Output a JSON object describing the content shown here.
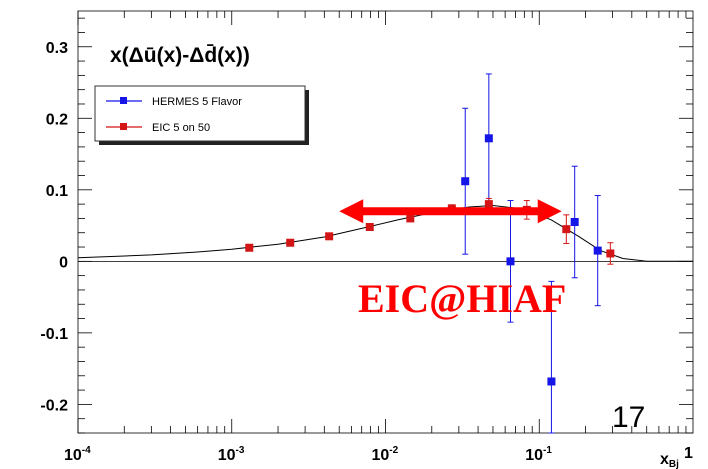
{
  "chart_data": {
    "type": "scatter",
    "title": "x(Δū(x)-Δd̄(x))",
    "xscale": "log",
    "xlim": [
      0.0001,
      1
    ],
    "ylim": [
      -0.24,
      0.35
    ],
    "x_tick_labels": [
      {
        "base": "10",
        "exp": "-4",
        "value": 0.0001
      },
      {
        "base": "10",
        "exp": "-3",
        "value": 0.001
      },
      {
        "base": "10",
        "exp": "-2",
        "value": 0.01
      },
      {
        "base": "10",
        "exp": "-1",
        "value": 0.1
      },
      {
        "base": "1",
        "exp": "",
        "value": 1
      }
    ],
    "y_tick_labels": [
      {
        "label": "0.3",
        "value": 0.3
      },
      {
        "label": "0.2",
        "value": 0.2
      },
      {
        "label": "0.1",
        "value": 0.1
      },
      {
        "label": "0",
        "value": 0
      },
      {
        "label": "-0.1",
        "value": -0.1
      },
      {
        "label": "-0.2",
        "value": -0.2
      }
    ],
    "xlabel": "x",
    "xlabel_sub": "Bj",
    "legend_position": "top-left",
    "series": [
      {
        "name": "HERMES 5 Flavor",
        "color": "#1515e8",
        "points": [
          {
            "x": 0.033,
            "y": 0.112,
            "err": 0.102
          },
          {
            "x": 0.047,
            "y": 0.172,
            "err": 0.09
          },
          {
            "x": 0.065,
            "y": 0.0,
            "err": 0.085
          },
          {
            "x": 0.12,
            "y": -0.168,
            "err": 0.14
          },
          {
            "x": 0.17,
            "y": 0.055,
            "err": 0.078
          },
          {
            "x": 0.24,
            "y": 0.015,
            "err": 0.077
          }
        ]
      },
      {
        "name": "EIC 5 on 50",
        "color": "#d41515",
        "points": [
          {
            "x": 0.0013,
            "y": 0.019,
            "err": 0.002
          },
          {
            "x": 0.0024,
            "y": 0.026,
            "err": 0.002
          },
          {
            "x": 0.0043,
            "y": 0.035,
            "err": 0.002
          },
          {
            "x": 0.0079,
            "y": 0.048,
            "err": 0.003
          },
          {
            "x": 0.0145,
            "y": 0.06,
            "err": 0.003
          },
          {
            "x": 0.027,
            "y": 0.074,
            "err": 0.005
          },
          {
            "x": 0.047,
            "y": 0.08,
            "err": 0.008
          },
          {
            "x": 0.083,
            "y": 0.072,
            "err": 0.013
          },
          {
            "x": 0.15,
            "y": 0.045,
            "err": 0.02
          },
          {
            "x": 0.29,
            "y": 0.011,
            "err": 0.015
          }
        ]
      }
    ],
    "curve": [
      [
        0.0001,
        0.005
      ],
      [
        0.0003,
        0.009
      ],
      [
        0.0006,
        0.013
      ],
      [
        0.001,
        0.017
      ],
      [
        0.002,
        0.024
      ],
      [
        0.004,
        0.034
      ],
      [
        0.007,
        0.046
      ],
      [
        0.012,
        0.058
      ],
      [
        0.02,
        0.068
      ],
      [
        0.035,
        0.076
      ],
      [
        0.05,
        0.078
      ],
      [
        0.08,
        0.073
      ],
      [
        0.12,
        0.058
      ],
      [
        0.18,
        0.035
      ],
      [
        0.25,
        0.015
      ],
      [
        0.35,
        0.004
      ],
      [
        0.5,
        0.0
      ],
      [
        0.7,
        0.0
      ],
      [
        1.0,
        0.0
      ]
    ],
    "range_arrow": {
      "x_start": 0.005,
      "x_end": 0.14,
      "y": 0.07,
      "color": "#ff0000"
    },
    "annotations": [
      "EIC@HIAF"
    ]
  },
  "slide_number": "17"
}
